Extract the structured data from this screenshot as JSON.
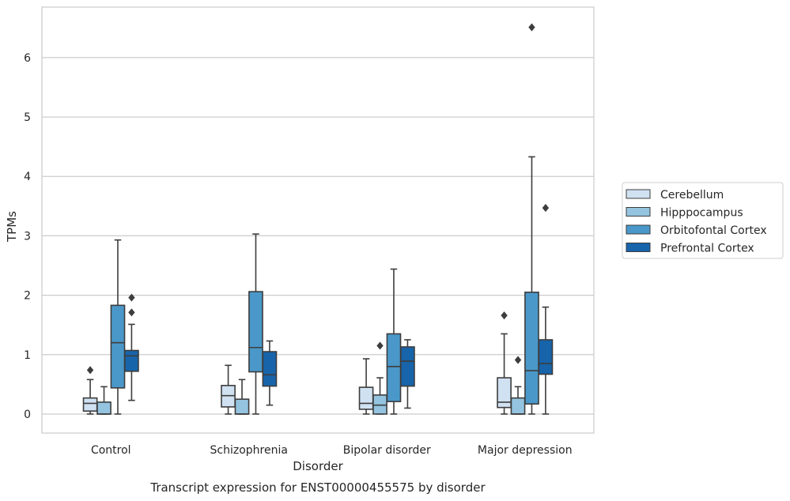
{
  "caption": "Transcript expression for ENST00000455575 by disorder",
  "chart_data": {
    "type": "box",
    "title": "",
    "xlabel": "Disorder",
    "ylabel": "TPMs",
    "ylim": [
      -0.32,
      6.85
    ],
    "yticks": [
      0,
      1,
      2,
      3,
      4,
      5,
      6
    ],
    "grid": "horizontal",
    "legend_position": "right",
    "categories": [
      "Control",
      "Schizophrenia",
      "Bipolar disorder",
      "Major depression"
    ],
    "series": [
      {
        "name": "Cerebellum",
        "color": "#d0e1f2",
        "boxes": [
          {
            "whislo": 0.0,
            "q1": 0.05,
            "med": 0.18,
            "q3": 0.27,
            "whishi": 0.58,
            "fliers": [
              0.74
            ]
          },
          {
            "whislo": 0.0,
            "q1": 0.12,
            "med": 0.31,
            "q3": 0.48,
            "whishi": 0.82,
            "fliers": []
          },
          {
            "whislo": 0.0,
            "q1": 0.08,
            "med": 0.18,
            "q3": 0.45,
            "whishi": 0.93,
            "fliers": []
          },
          {
            "whislo": 0.0,
            "q1": 0.11,
            "med": 0.2,
            "q3": 0.61,
            "whishi": 1.35,
            "fliers": [
              1.66
            ]
          }
        ]
      },
      {
        "name": "Hipppocampus",
        "color": "#94c4df",
        "boxes": [
          {
            "whislo": 0.0,
            "q1": 0.0,
            "med": 0.0,
            "q3": 0.2,
            "whishi": 0.46,
            "fliers": []
          },
          {
            "whislo": 0.0,
            "q1": 0.0,
            "med": 0.0,
            "q3": 0.25,
            "whishi": 0.58,
            "fliers": []
          },
          {
            "whislo": 0.0,
            "q1": 0.0,
            "med": 0.15,
            "q3": 0.32,
            "whishi": 0.61,
            "fliers": [
              1.15
            ]
          },
          {
            "whislo": 0.0,
            "q1": 0.0,
            "med": 0.0,
            "q3": 0.27,
            "whishi": 0.46,
            "fliers": [
              0.91
            ]
          }
        ]
      },
      {
        "name": "Orbitofontal Cortex",
        "color": "#4a98c9",
        "boxes": [
          {
            "whislo": 0.0,
            "q1": 0.44,
            "med": 1.2,
            "q3": 1.83,
            "whishi": 2.93,
            "fliers": []
          },
          {
            "whislo": 0.0,
            "q1": 0.71,
            "med": 1.12,
            "q3": 2.06,
            "whishi": 3.03,
            "fliers": []
          },
          {
            "whislo": 0.0,
            "q1": 0.21,
            "med": 0.8,
            "q3": 1.35,
            "whishi": 2.44,
            "fliers": []
          },
          {
            "whislo": 0.0,
            "q1": 0.17,
            "med": 0.73,
            "q3": 2.05,
            "whishi": 4.33,
            "fliers": [
              6.51
            ]
          }
        ]
      },
      {
        "name": "Prefrontal Cortex",
        "color": "#1764ab",
        "boxes": [
          {
            "whislo": 0.23,
            "q1": 0.72,
            "med": 0.98,
            "q3": 1.07,
            "whishi": 1.51,
            "fliers": [
              1.71,
              1.96
            ]
          },
          {
            "whislo": 0.15,
            "q1": 0.47,
            "med": 0.66,
            "q3": 1.05,
            "whishi": 1.23,
            "fliers": []
          },
          {
            "whislo": 0.1,
            "q1": 0.47,
            "med": 0.89,
            "q3": 1.13,
            "whishi": 1.25,
            "fliers": []
          },
          {
            "whislo": 0.0,
            "q1": 0.67,
            "med": 0.85,
            "q3": 1.25,
            "whishi": 1.8,
            "fliers": [
              3.47
            ]
          }
        ]
      }
    ]
  }
}
